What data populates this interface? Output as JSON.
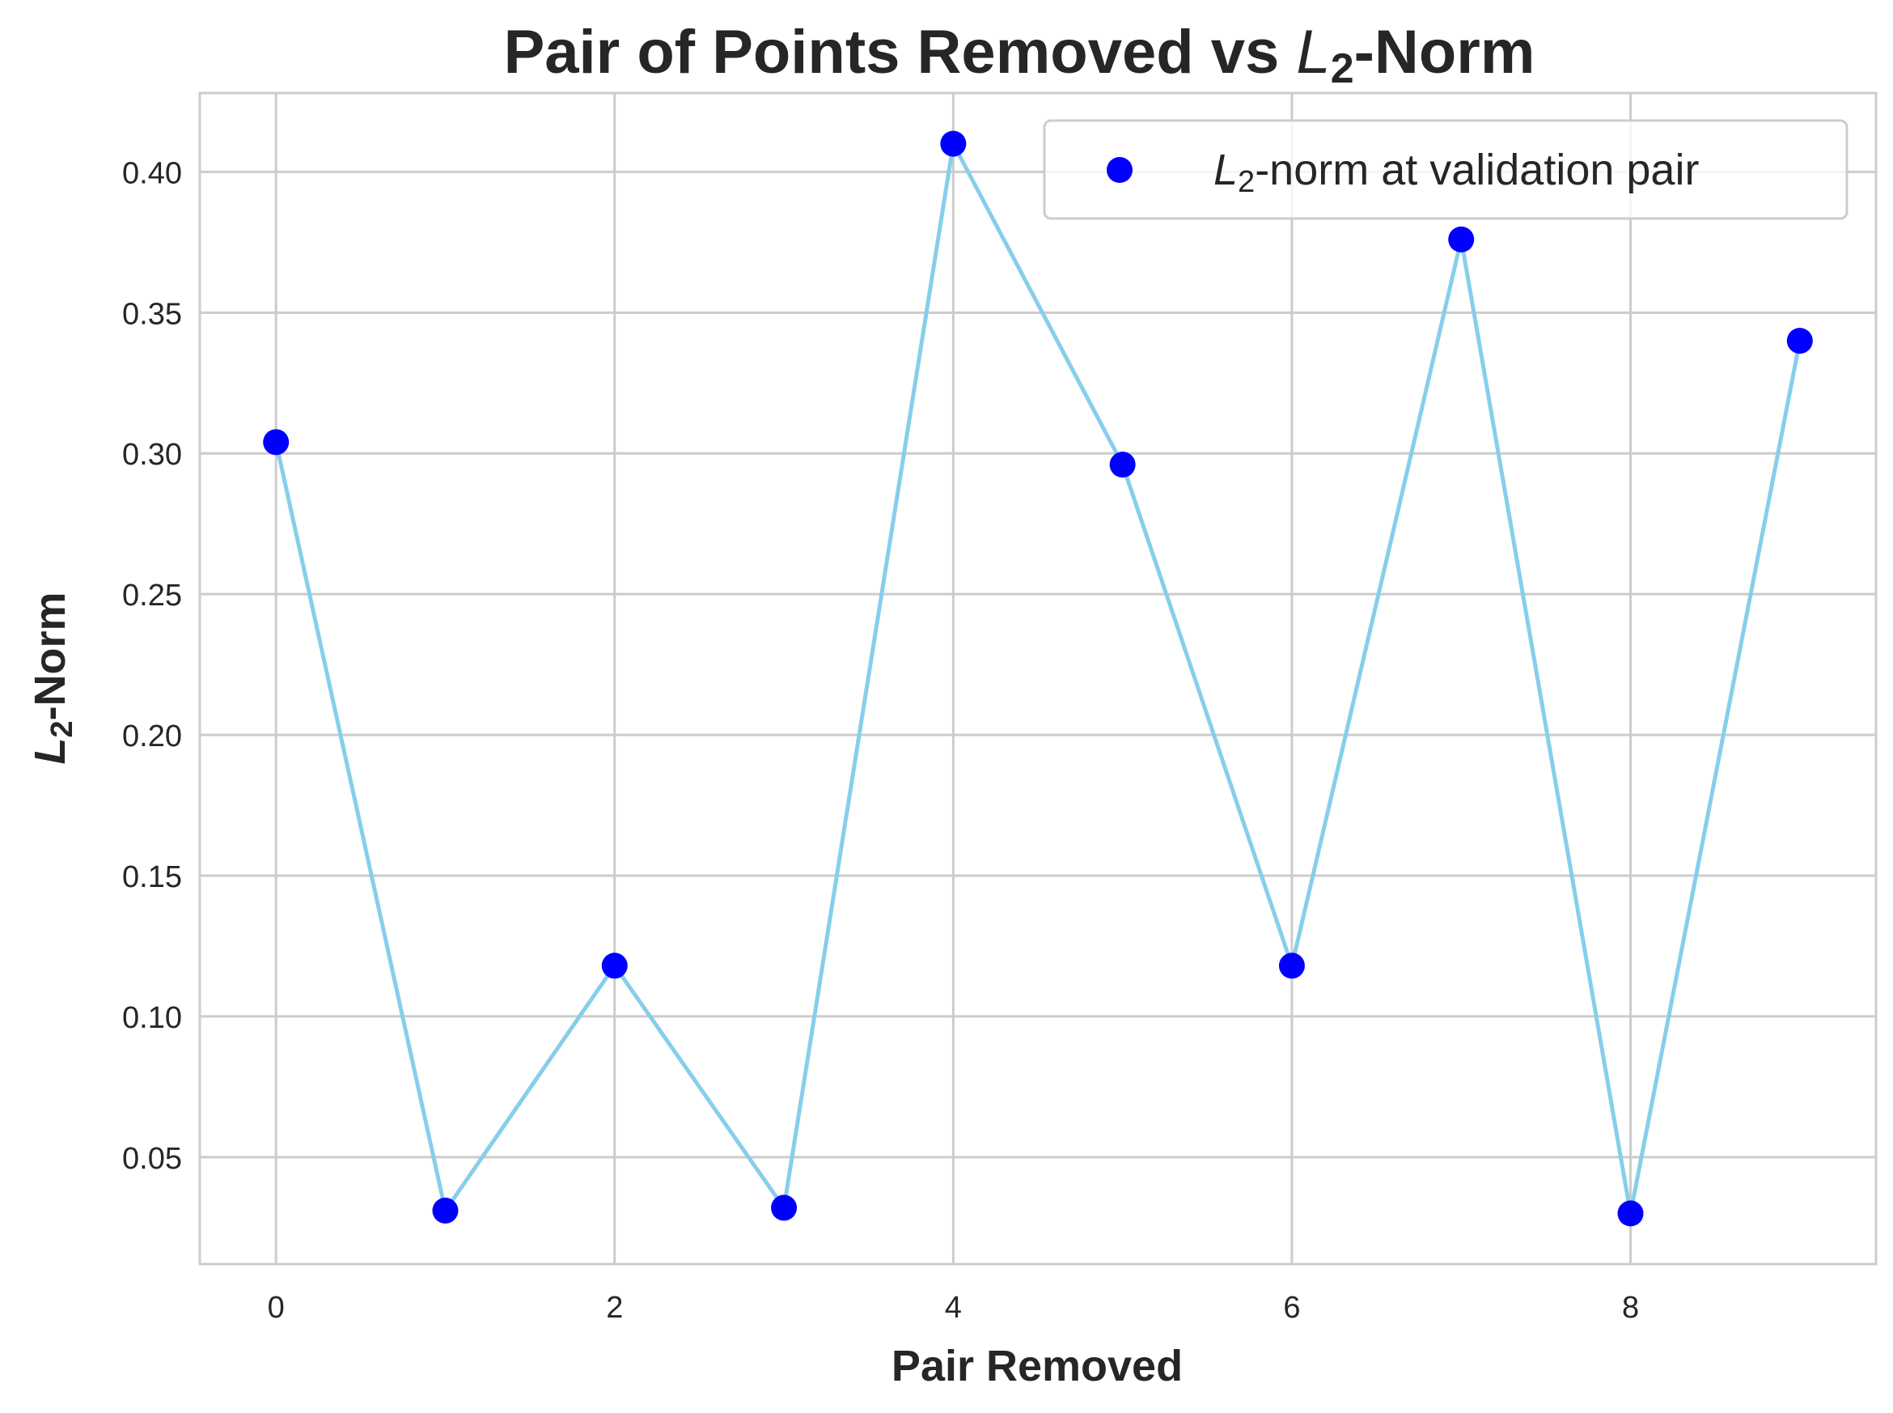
{
  "chart_data": {
    "type": "line",
    "title": {
      "prefix": "Pair of Points Removed vs ",
      "math_var": "L",
      "math_sub": "2",
      "suffix": "-Norm"
    },
    "xlabel": "Pair Removed",
    "ylabel": {
      "math_var": "L",
      "math_sub": "2",
      "suffix": "-Norm"
    },
    "xlim": [
      -0.45,
      9.45
    ],
    "ylim": [
      0.012,
      0.428
    ],
    "x_ticks": [
      0,
      2,
      4,
      6,
      8
    ],
    "x_tick_labels": [
      "0",
      "2",
      "4",
      "6",
      "8"
    ],
    "y_ticks": [
      0.05,
      0.1,
      0.15,
      0.2,
      0.25,
      0.3,
      0.35,
      0.4
    ],
    "y_tick_labels": [
      "0.05",
      "0.10",
      "0.15",
      "0.20",
      "0.25",
      "0.30",
      "0.35",
      "0.40"
    ],
    "grid": true,
    "legend_position": "top-right",
    "series": [
      {
        "name": {
          "math_var": "L",
          "math_sub": "2",
          "suffix": "-norm at validation pair"
        },
        "x": [
          0,
          1,
          2,
          3,
          4,
          5,
          6,
          7,
          8,
          9
        ],
        "y": [
          0.304,
          0.031,
          0.118,
          0.032,
          0.41,
          0.296,
          0.118,
          0.376,
          0.03,
          0.34
        ],
        "line_color": "#87ceeb",
        "marker_color": "#0000ff"
      }
    ]
  }
}
